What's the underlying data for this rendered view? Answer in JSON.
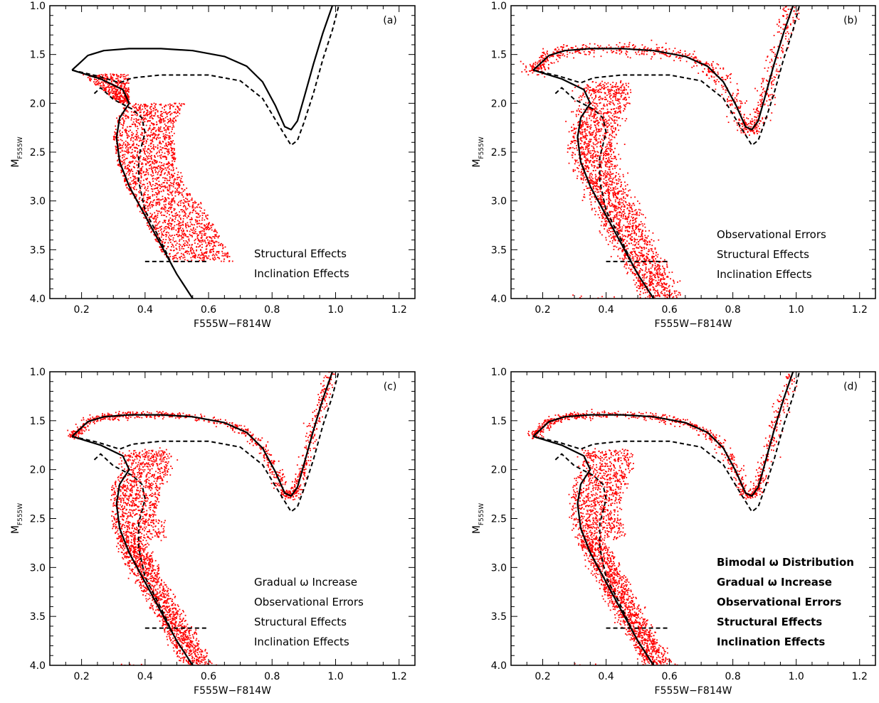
{
  "chart_data": [
    {
      "panel": "a",
      "type": "scatter",
      "panel_label": "(a)",
      "xlabel": "F555W−F814W",
      "ylabel": "M",
      "ylabel_sub": "F555W",
      "xlim": [
        0.1,
        1.25
      ],
      "ylim": [
        4.0,
        1.0
      ],
      "x_ticks": [
        0.2,
        0.4,
        0.6,
        0.8,
        1.0,
        1.2
      ],
      "y_ticks": [
        1.0,
        1.5,
        2.0,
        2.5,
        3.0,
        3.5,
        4.0
      ],
      "annotations": [
        "Structural Effects",
        "Inclination Effects"
      ],
      "annotation_bold": false,
      "scatter_region": "main-sequence-turnoff-only",
      "bar_y": 3.62,
      "bar_x": [
        0.4,
        0.6
      ]
    },
    {
      "panel": "b",
      "type": "scatter",
      "panel_label": "(b)",
      "xlabel": "F555W−F814W",
      "ylabel": "M",
      "ylabel_sub": "F555W",
      "xlim": [
        0.1,
        1.25
      ],
      "ylim": [
        4.0,
        1.0
      ],
      "x_ticks": [
        0.2,
        0.4,
        0.6,
        0.8,
        1.0,
        1.2
      ],
      "y_ticks": [
        1.0,
        1.5,
        2.0,
        2.5,
        3.0,
        3.5,
        4.0
      ],
      "annotations": [
        "Observational Errors",
        "Structural Effects",
        "Inclination Effects"
      ],
      "annotation_bold": false,
      "scatter_region": "full",
      "bar_y": 3.62,
      "bar_x": [
        0.4,
        0.6
      ]
    },
    {
      "panel": "c",
      "type": "scatter",
      "panel_label": "(c)",
      "xlabel": "F555W−F814W",
      "ylabel": "M",
      "ylabel_sub": "F555W",
      "xlim": [
        0.1,
        1.25
      ],
      "ylim": [
        4.0,
        1.0
      ],
      "x_ticks": [
        0.2,
        0.4,
        0.6,
        0.8,
        1.0,
        1.2
      ],
      "y_ticks": [
        1.0,
        1.5,
        2.0,
        2.5,
        3.0,
        3.5,
        4.0
      ],
      "annotations": [
        "Gradual ω Increase",
        "Observational Errors",
        "Structural Effects",
        "Inclination Effects"
      ],
      "annotation_bold": false,
      "scatter_region": "full",
      "bar_y": 3.62,
      "bar_x": [
        0.4,
        0.6
      ]
    },
    {
      "panel": "d",
      "type": "scatter",
      "panel_label": "(d)",
      "xlabel": "F555W−F814W",
      "ylabel": "M",
      "ylabel_sub": "F555W",
      "xlim": [
        0.1,
        1.25
      ],
      "ylim": [
        4.0,
        1.0
      ],
      "x_ticks": [
        0.2,
        0.4,
        0.6,
        0.8,
        1.0,
        1.2
      ],
      "y_ticks": [
        1.0,
        1.5,
        2.0,
        2.5,
        3.0,
        3.5,
        4.0
      ],
      "annotations": [
        "Bimodal ω Distribution",
        "Gradual ω Increase",
        "Observational Errors",
        "Structural Effects",
        "Inclination Effects"
      ],
      "annotation_bold": true,
      "scatter_region": "full",
      "bar_y": 3.62,
      "bar_x": [
        0.4,
        0.6
      ]
    }
  ],
  "isochrones": {
    "rotating_solid": [
      [
        0.17,
        1.66
      ],
      [
        0.19,
        1.6
      ],
      [
        0.22,
        1.51
      ],
      [
        0.27,
        1.46
      ],
      [
        0.35,
        1.44
      ],
      [
        0.45,
        1.44
      ],
      [
        0.55,
        1.46
      ],
      [
        0.65,
        1.52
      ],
      [
        0.72,
        1.62
      ],
      [
        0.77,
        1.78
      ],
      [
        0.81,
        2.02
      ],
      [
        0.84,
        2.24
      ],
      [
        0.86,
        2.27
      ],
      [
        0.88,
        2.18
      ],
      [
        0.9,
        1.95
      ],
      [
        0.93,
        1.6
      ],
      [
        0.96,
        1.28
      ],
      [
        0.99,
        1.0
      ]
    ],
    "nonrotating_dashed": [
      [
        0.17,
        1.66
      ],
      [
        0.25,
        1.72
      ],
      [
        0.32,
        1.79
      ],
      [
        0.36,
        1.74
      ],
      [
        0.45,
        1.71
      ],
      [
        0.6,
        1.71
      ],
      [
        0.7,
        1.77
      ],
      [
        0.77,
        1.95
      ],
      [
        0.82,
        2.22
      ],
      [
        0.86,
        2.43
      ],
      [
        0.88,
        2.38
      ],
      [
        0.9,
        2.2
      ],
      [
        0.93,
        1.9
      ],
      [
        0.96,
        1.55
      ],
      [
        0.99,
        1.25
      ],
      [
        1.01,
        1.0
      ]
    ],
    "ms_solid": [
      [
        0.17,
        1.66
      ],
      [
        0.26,
        1.75
      ],
      [
        0.33,
        1.86
      ],
      [
        0.35,
        2.0
      ],
      [
        0.32,
        2.15
      ],
      [
        0.31,
        2.35
      ],
      [
        0.32,
        2.6
      ],
      [
        0.35,
        2.85
      ],
      [
        0.4,
        3.15
      ],
      [
        0.45,
        3.45
      ],
      [
        0.5,
        3.75
      ],
      [
        0.55,
        4.0
      ]
    ],
    "ms_dashed": [
      [
        0.24,
        1.9
      ],
      [
        0.26,
        1.84
      ],
      [
        0.3,
        1.96
      ],
      [
        0.36,
        2.06
      ],
      [
        0.39,
        2.15
      ],
      [
        0.4,
        2.3
      ],
      [
        0.38,
        2.55
      ],
      [
        0.38,
        2.8
      ],
      [
        0.4,
        3.1
      ],
      [
        0.44,
        3.35
      ],
      [
        0.47,
        3.55
      ],
      [
        0.49,
        3.7
      ]
    ]
  }
}
